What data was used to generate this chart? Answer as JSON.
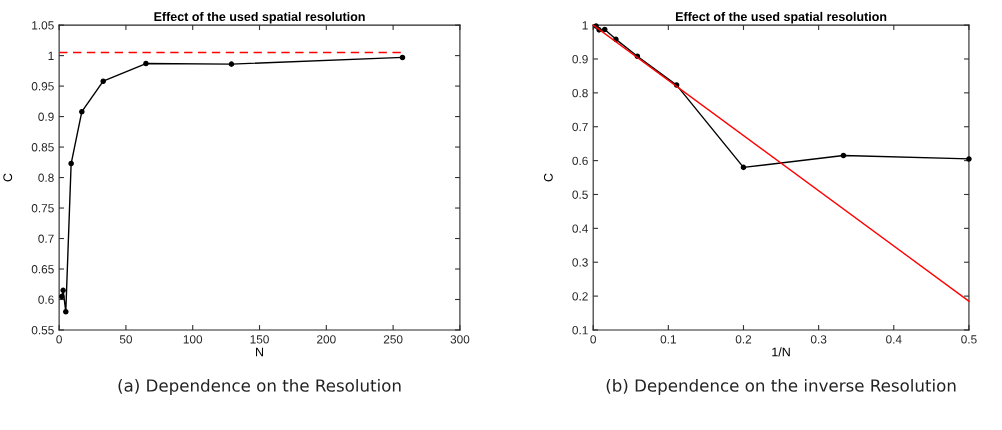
{
  "chart_data": [
    {
      "type": "line",
      "title": "Effect of the used spatial resolution",
      "xlabel": "N",
      "ylabel": "C",
      "xlim": [
        0,
        300
      ],
      "xticks": [
        0,
        50,
        100,
        150,
        200,
        250,
        300
      ],
      "ylim": [
        0.55,
        1.05
      ],
      "yticks": [
        0.55,
        0.6,
        0.65,
        0.7,
        0.75,
        0.8,
        0.85,
        0.9,
        0.95,
        1,
        1.05
      ],
      "grid": false,
      "legend": false,
      "series": [
        {
          "x": [
            2,
            3,
            5,
            9,
            17,
            33,
            65,
            129,
            257
          ],
          "values": [
            0.605,
            0.615,
            0.58,
            0.823,
            0.908,
            0.958,
            0.987,
            0.986,
            0.997
          ],
          "color": "#000000",
          "marker": "circle",
          "line_style": "solid"
        },
        {
          "x": [
            0,
            257
          ],
          "values": [
            1.005,
            1.005
          ],
          "color": "#ff0000",
          "marker": "none",
          "line_style": "dashed"
        }
      ],
      "annotations": [
        "(a) Dependence on the Resolution"
      ]
    },
    {
      "type": "line",
      "title": "Effect of the used spatial resolution",
      "xlabel": "1/N",
      "ylabel": "C",
      "xlim": [
        0,
        0.5
      ],
      "xticks": [
        0,
        0.1,
        0.2,
        0.3,
        0.4,
        0.5
      ],
      "ylim": [
        0.1,
        1
      ],
      "yticks": [
        0.1,
        0.2,
        0.3,
        0.4,
        0.5,
        0.6,
        0.7,
        0.8,
        0.9,
        1
      ],
      "grid": false,
      "legend": false,
      "series": [
        {
          "x": [
            0.5,
            0.333,
            0.2,
            0.111,
            0.0588,
            0.0303,
            0.0154,
            0.0078,
            0.0039
          ],
          "values": [
            0.605,
            0.615,
            0.58,
            0.823,
            0.908,
            0.958,
            0.987,
            0.986,
            0.997
          ],
          "color": "#000000",
          "marker": "circle",
          "line_style": "solid"
        },
        {
          "x": [
            0,
            0.5
          ],
          "values": [
            1.0,
            0.185
          ],
          "color": "#ff0000",
          "marker": "none",
          "line_style": "solid"
        }
      ],
      "annotations": [
        "(b) Dependence on the inverse Resolution"
      ]
    }
  ]
}
